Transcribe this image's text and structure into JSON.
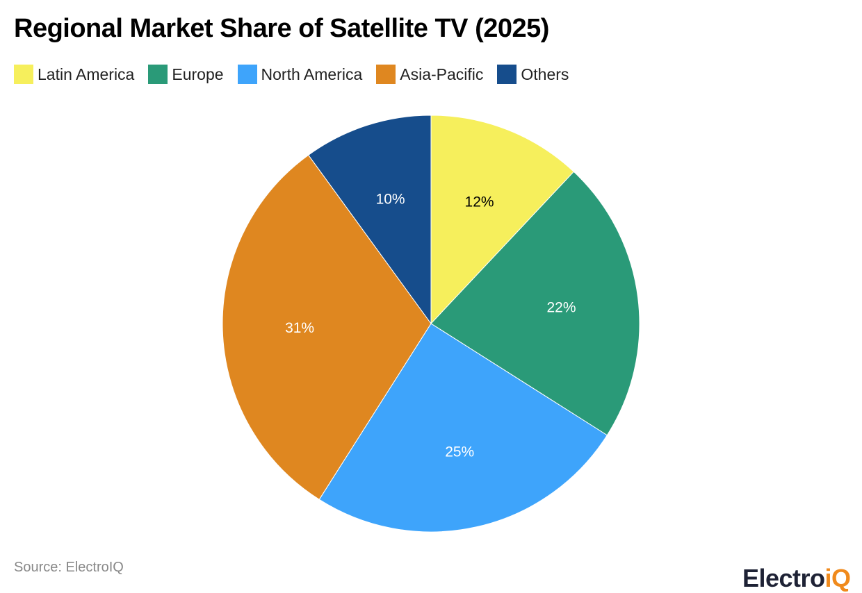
{
  "title": "Regional Market Share of Satellite TV (2025)",
  "legend": [
    {
      "label": "Latin America",
      "color": "#f6ef5c"
    },
    {
      "label": "Europe",
      "color": "#2a9a78"
    },
    {
      "label": "North America",
      "color": "#3ea4fb"
    },
    {
      "label": "Asia-Pacific",
      "color": "#df8720"
    },
    {
      "label": "Others",
      "color": "#164d8c"
    }
  ],
  "source": "Source: ElectroIQ",
  "brand": {
    "main": "Electro",
    "accent": "iQ"
  },
  "chart_data": {
    "type": "pie",
    "title": "Regional Market Share of Satellite TV (2025)",
    "categories": [
      "Latin America",
      "Europe",
      "North America",
      "Asia-Pacific",
      "Others"
    ],
    "values": [
      12,
      22,
      25,
      31,
      10
    ],
    "labels": [
      "12%",
      "22%",
      "25%",
      "31%",
      "10%"
    ],
    "colors": [
      "#f6ef5c",
      "#2a9a78",
      "#3ea4fb",
      "#df8720",
      "#164d8c"
    ],
    "label_colors": [
      "#000000",
      "#ffffff",
      "#ffffff",
      "#ffffff",
      "#ffffff"
    ],
    "legend_position": "top-left",
    "start_angle": "12 o'clock, clockwise"
  }
}
